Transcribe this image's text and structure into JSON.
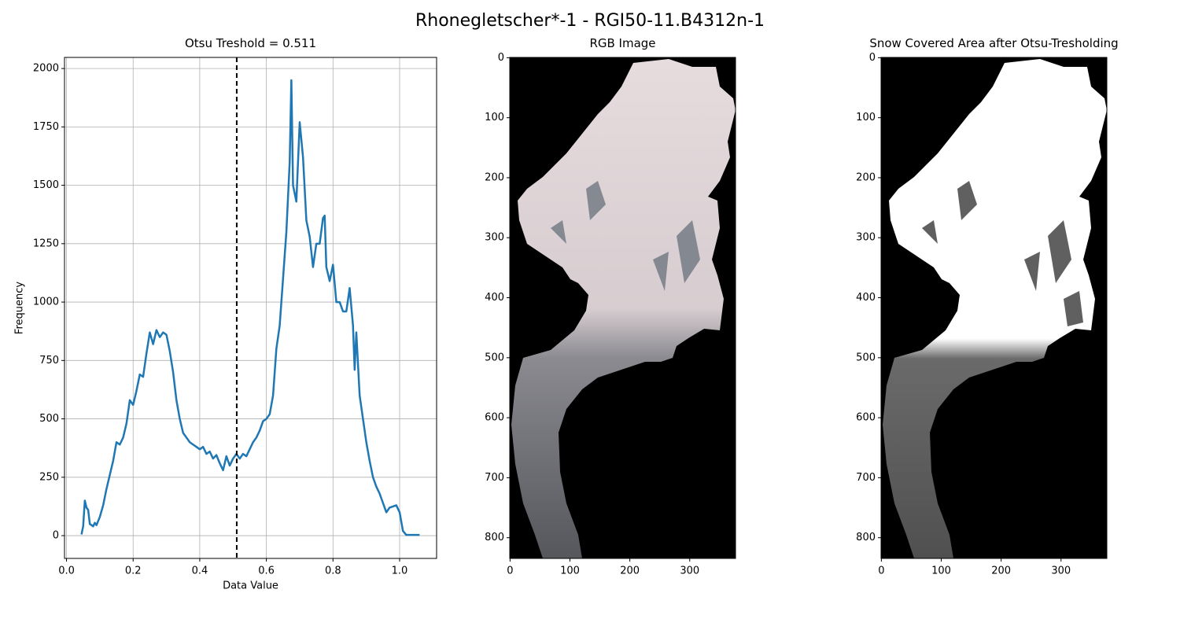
{
  "title": "Rhonegletscher*-1 - RGI50-11.B4312n-1",
  "chart_data": [
    {
      "type": "line",
      "title": "Otsu Treshold = 0.511",
      "x_label": "Data Value",
      "y_label": "Frequency",
      "threshold": 0.511,
      "grid": true,
      "x": [
        0.045,
        0.05,
        0.055,
        0.06,
        0.065,
        0.07,
        0.08,
        0.085,
        0.09,
        0.1,
        0.11,
        0.12,
        0.13,
        0.14,
        0.15,
        0.16,
        0.17,
        0.18,
        0.19,
        0.2,
        0.21,
        0.22,
        0.23,
        0.24,
        0.25,
        0.26,
        0.27,
        0.28,
        0.29,
        0.3,
        0.31,
        0.32,
        0.33,
        0.34,
        0.35,
        0.36,
        0.37,
        0.38,
        0.39,
        0.4,
        0.41,
        0.42,
        0.43,
        0.44,
        0.45,
        0.46,
        0.47,
        0.48,
        0.49,
        0.5,
        0.51,
        0.52,
        0.53,
        0.54,
        0.55,
        0.56,
        0.57,
        0.58,
        0.59,
        0.6,
        0.61,
        0.62,
        0.63,
        0.64,
        0.65,
        0.66,
        0.67,
        0.675,
        0.68,
        0.69,
        0.7,
        0.71,
        0.72,
        0.73,
        0.74,
        0.75,
        0.76,
        0.77,
        0.775,
        0.78,
        0.79,
        0.8,
        0.81,
        0.82,
        0.83,
        0.84,
        0.85,
        0.86,
        0.865,
        0.87,
        0.88,
        0.89,
        0.9,
        0.91,
        0.92,
        0.93,
        0.94,
        0.95,
        0.96,
        0.97,
        0.98,
        0.99,
        1.0,
        1.01,
        1.02,
        1.06
      ],
      "series": [
        {
          "color": "#1f77b4",
          "values": [
            5,
            40,
            150,
            120,
            110,
            50,
            40,
            55,
            45,
            80,
            130,
            200,
            260,
            320,
            400,
            390,
            420,
            480,
            580,
            560,
            620,
            690,
            680,
            780,
            870,
            820,
            880,
            850,
            870,
            860,
            790,
            700,
            580,
            500,
            440,
            420,
            400,
            390,
            380,
            370,
            380,
            350,
            360,
            330,
            345,
            310,
            280,
            340,
            300,
            330,
            350,
            330,
            350,
            340,
            370,
            400,
            420,
            450,
            490,
            500,
            520,
            600,
            800,
            900,
            1100,
            1300,
            1600,
            1950,
            1500,
            1430,
            1770,
            1620,
            1350,
            1280,
            1150,
            1250,
            1250,
            1360,
            1370,
            1150,
            1090,
            1160,
            1000,
            1000,
            960,
            960,
            1060,
            900,
            710,
            870,
            600,
            500,
            400,
            320,
            250,
            210,
            180,
            140,
            100,
            120,
            125,
            130,
            100,
            20,
            3,
            3
          ]
        }
      ],
      "xlim": [
        -0.006,
        1.111
      ],
      "ylim": [
        -97.5,
        2047.5
      ],
      "xticks": [
        {
          "value": 0,
          "label": "0.0"
        },
        0.2,
        0.4,
        0.6,
        0.8,
        {
          "value": 1,
          "label": "1.0"
        }
      ],
      "yticks": [
        0,
        250,
        500,
        750,
        1000,
        1250,
        1500,
        1750,
        2000
      ]
    },
    {
      "type": "image",
      "title": "RGB Image",
      "xlim": [
        -0.5,
        376.5
      ],
      "ylim": [
        834.5,
        -0.5
      ],
      "xticks": [
        0,
        100,
        200,
        300
      ],
      "yticks": [
        0,
        100,
        200,
        300,
        400,
        500,
        600,
        700,
        800
      ]
    },
    {
      "type": "image",
      "title": "Snow Covered Area after Otsu-Tresholding",
      "xlim": [
        -0.5,
        376.5
      ],
      "ylim": [
        834.5,
        -0.5
      ],
      "xticks": [
        0,
        100,
        200,
        300
      ],
      "yticks": [
        0,
        100,
        200,
        300,
        400,
        500,
        600,
        700,
        800
      ]
    }
  ]
}
